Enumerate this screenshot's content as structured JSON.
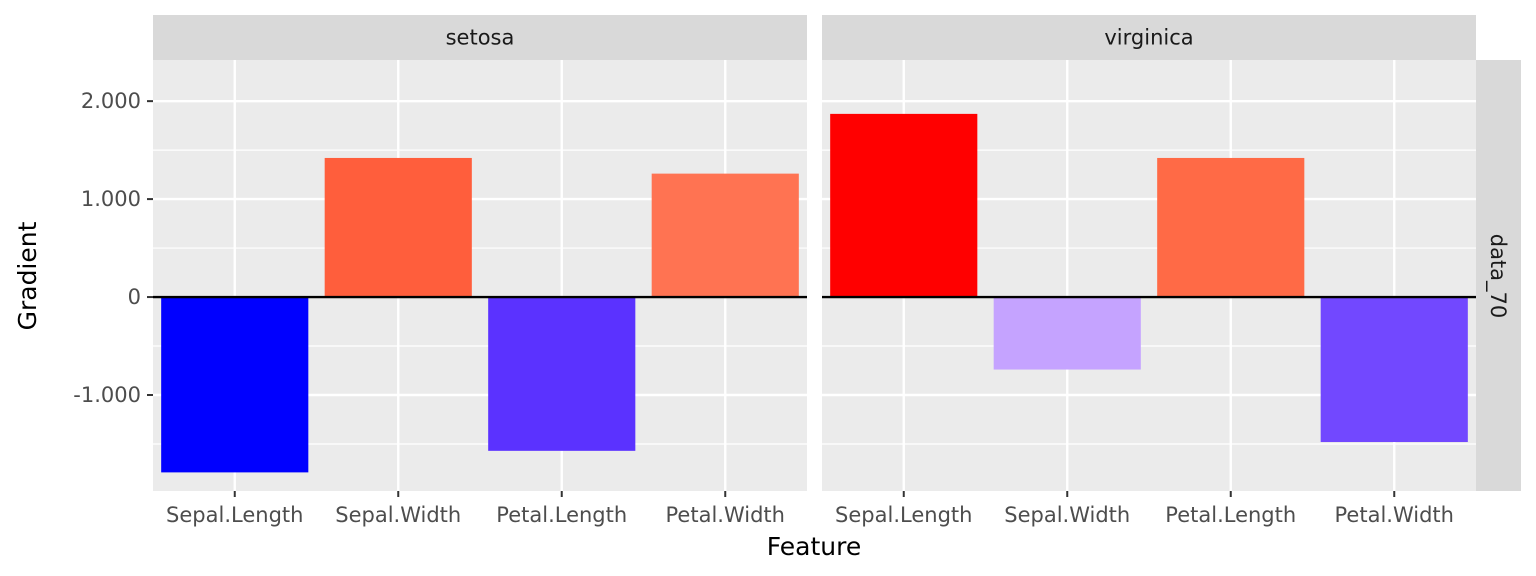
{
  "chart_data": {
    "type": "bar",
    "xlabel": "Feature",
    "ylabel": "Gradient",
    "row_strip": "data_70",
    "categories": [
      "Sepal.Length",
      "Sepal.Width",
      "Petal.Length",
      "Petal.Width"
    ],
    "yticks": [
      -1,
      0,
      1,
      2
    ],
    "ytick_labels": [
      "-1.000",
      "0",
      "1.000",
      "2.000"
    ],
    "ylim": [
      -1.98,
      2.42
    ],
    "grid": true,
    "panels": [
      {
        "strip": "setosa",
        "values": [
          -1.79,
          1.42,
          -1.57,
          1.26
        ],
        "colors": [
          "#0000ff",
          "#ff5e3c",
          "#5b32ff",
          "#ff7352"
        ]
      },
      {
        "strip": "virginica",
        "values": [
          1.87,
          -0.74,
          1.42,
          -1.48
        ],
        "colors": [
          "#ff0000",
          "#c5a3ff",
          "#ff6a46",
          "#7248ff"
        ]
      }
    ]
  }
}
